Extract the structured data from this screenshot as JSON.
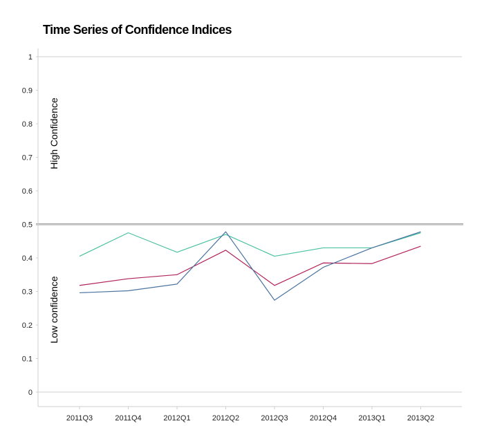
{
  "chart_data": {
    "type": "line",
    "title": "Time Series of Confidence Indices",
    "xlabel": "",
    "ylabel": "",
    "categories": [
      "2011Q3",
      "2011Q4",
      "2012Q1",
      "2012Q2",
      "2012Q3",
      "2012Q4",
      "2013Q1",
      "2013Q2"
    ],
    "ylim": [
      0,
      1
    ],
    "yticks": [
      "0",
      "0.1",
      "0.2",
      "0.3",
      "0.4",
      "0.5",
      "0.6",
      "0.7",
      "0.8",
      "0.9",
      "1"
    ],
    "reference_line": 0.5,
    "annotations": [
      "High Confidence",
      "Low confidence"
    ],
    "grid": "horizontal at 0, 0.5, 1",
    "legend": "none",
    "series": [
      {
        "color": "#4ac1a0",
        "values": [
          0.405,
          0.475,
          0.417,
          0.47,
          0.405,
          0.43,
          0.43,
          0.475
        ]
      },
      {
        "color": "#b0225a",
        "values": [
          0.318,
          0.338,
          0.35,
          0.423,
          0.318,
          0.385,
          0.383,
          0.435
        ]
      },
      {
        "color": "#4a73a0",
        "values": [
          0.296,
          0.302,
          0.322,
          0.478,
          0.274,
          0.372,
          0.43,
          0.478
        ]
      }
    ]
  }
}
